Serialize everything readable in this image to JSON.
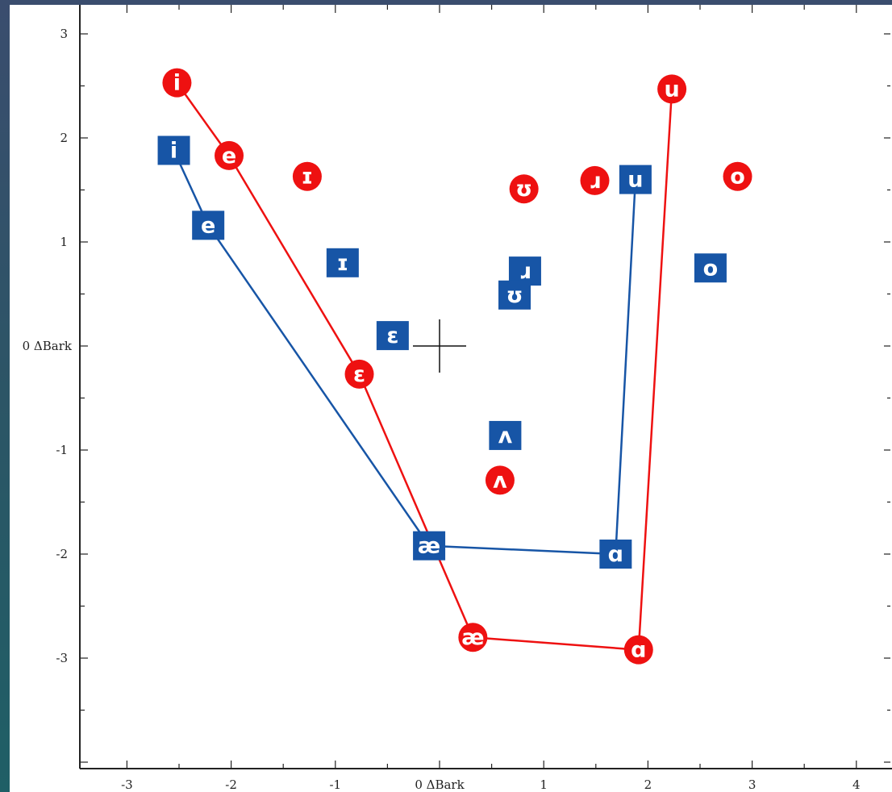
{
  "chart_data": {
    "type": "scatter",
    "xlabel": "0 ΔBark",
    "ylabel": "0 ΔBark",
    "xlim": [
      -3.5,
      4.2
    ],
    "ylim": [
      -4.0,
      3.3
    ],
    "x_ticks": [
      -3,
      -2,
      -1,
      0,
      1,
      2,
      3,
      4
    ],
    "y_ticks": [
      3,
      2,
      1,
      0,
      -1,
      -2,
      -3
    ],
    "x_tick_labels": [
      "-3",
      "-2",
      "-1",
      "0 ΔBark",
      "1",
      "2",
      "3",
      "4"
    ],
    "y_tick_labels": [
      "3",
      "2",
      "1",
      "0 ΔBark",
      "-1",
      "-2",
      "-3"
    ],
    "origin_cross": {
      "x": 0,
      "y": 0
    },
    "series": [
      {
        "color": "#ee1111",
        "marker": "circle",
        "points": [
          {
            "label": "i",
            "x": -2.52,
            "y": 2.53
          },
          {
            "label": "e",
            "x": -2.02,
            "y": 1.83
          },
          {
            "label": "ɪ",
            "x": -1.27,
            "y": 1.63
          },
          {
            "label": "ɛ",
            "x": -0.77,
            "y": -0.27
          },
          {
            "label": "ʊ",
            "x": 0.81,
            "y": 1.51
          },
          {
            "label": "ɹ",
            "x": 1.49,
            "y": 1.59
          },
          {
            "label": "u",
            "x": 2.23,
            "y": 2.47
          },
          {
            "label": "o",
            "x": 2.86,
            "y": 1.63
          },
          {
            "label": "ʌ",
            "x": 0.58,
            "y": -1.29
          },
          {
            "label": "æ",
            "x": 0.32,
            "y": -2.8
          },
          {
            "label": "ɑ",
            "x": 1.91,
            "y": -2.92
          }
        ],
        "polygon": [
          "i",
          "e",
          "ɛ",
          "æ",
          "ɑ",
          "u"
        ]
      },
      {
        "color": "#1755a6",
        "marker": "square",
        "points": [
          {
            "label": "i",
            "x": -2.55,
            "y": 1.88
          },
          {
            "label": "e",
            "x": -2.22,
            "y": 1.16
          },
          {
            "label": "ɪ",
            "x": -0.93,
            "y": 0.8
          },
          {
            "label": "ɛ",
            "x": -0.45,
            "y": 0.1
          },
          {
            "label": "ɹ",
            "x": 0.82,
            "y": 0.72
          },
          {
            "label": "ʊ",
            "x": 0.72,
            "y": 0.49
          },
          {
            "label": "u",
            "x": 1.88,
            "y": 1.6
          },
          {
            "label": "o",
            "x": 2.6,
            "y": 0.75
          },
          {
            "label": "ʌ",
            "x": 0.63,
            "y": -0.86
          },
          {
            "label": "æ",
            "x": -0.1,
            "y": -1.92
          },
          {
            "label": "ɑ",
            "x": 1.69,
            "y": -2.0
          }
        ],
        "polygon": [
          "i",
          "e",
          "æ",
          "ɑ",
          "u"
        ]
      }
    ]
  }
}
